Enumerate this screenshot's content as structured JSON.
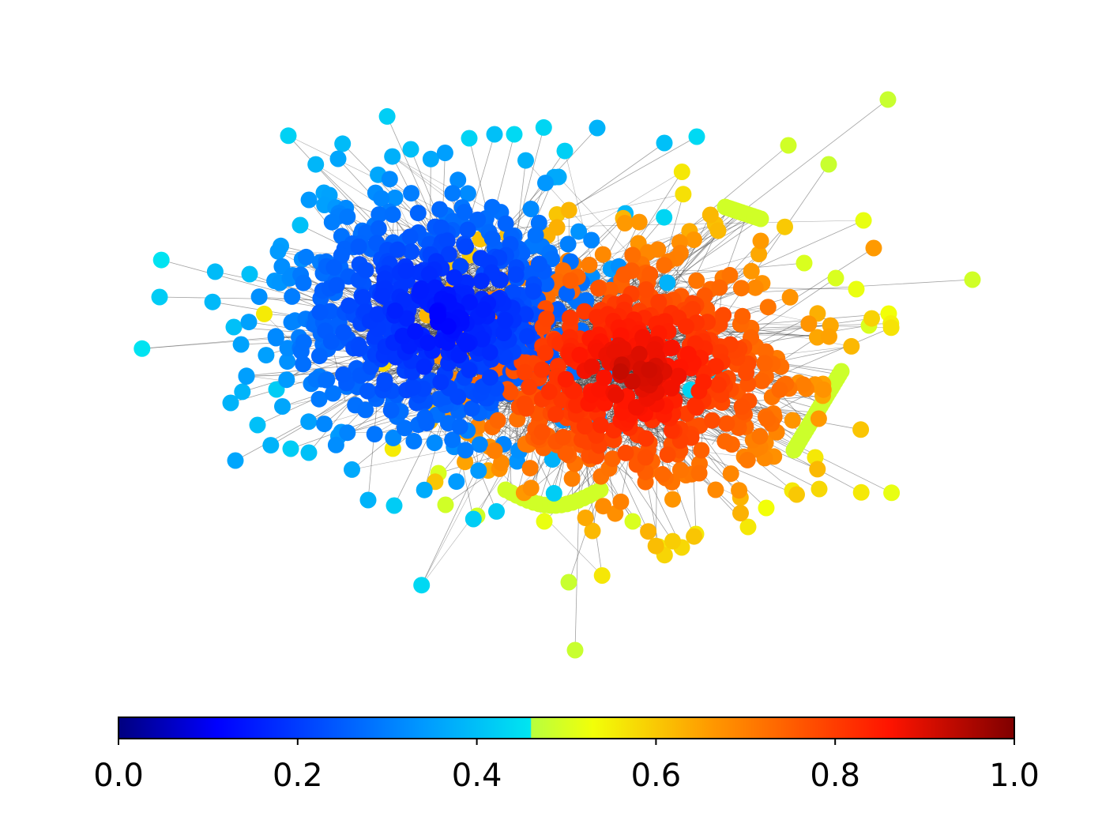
{
  "chart_data": {
    "type": "scatter",
    "title": "",
    "xlabel": "",
    "ylabel": "",
    "grid": false,
    "legend": "none",
    "colorbar": {
      "orientation": "horizontal",
      "placement": "bottom",
      "colormap": "jet",
      "range": [
        0.0,
        1.0
      ],
      "ticks": [
        "0.0",
        "0.2",
        "0.4",
        "0.6",
        "0.8",
        "1.0"
      ],
      "masked_gap_color_note": "",
      "stops": [
        {
          "v": 0.0,
          "c": "#00007f"
        },
        {
          "v": 0.11,
          "c": "#0000ff"
        },
        {
          "v": 0.34,
          "c": "#0099ff"
        },
        {
          "v": 0.46,
          "c": "#00e6f0"
        },
        {
          "v": 0.461,
          "c": "#b8ff3e"
        },
        {
          "v": 0.53,
          "c": "#f2ff08"
        },
        {
          "v": 0.66,
          "c": "#ff9a00"
        },
        {
          "v": 0.86,
          "c": "#ff1400"
        },
        {
          "v": 1.0,
          "c": "#7f0000"
        }
      ]
    },
    "clusters": [
      {
        "name": "",
        "center_value": 0.12,
        "spread_value": 0.1,
        "count": 620
      },
      {
        "name": "",
        "center_value": 0.92,
        "spread_value": 0.12,
        "count": 600
      }
    ]
  }
}
